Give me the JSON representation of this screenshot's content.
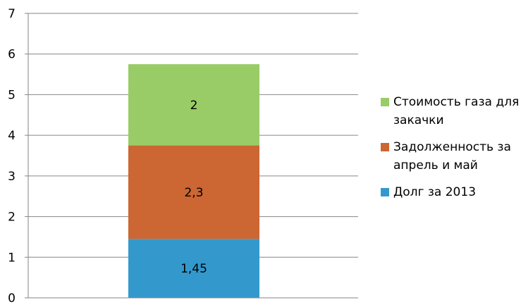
{
  "chart_data": {
    "type": "bar",
    "stacked": true,
    "categories": [
      ""
    ],
    "series": [
      {
        "name": "Долг за 2013",
        "values": [
          1.45
        ],
        "label": "1,45",
        "color": "#3399CC"
      },
      {
        "name": "Задолженность за апрель и май",
        "values": [
          2.3
        ],
        "label": "2,3",
        "color": "#CC6633"
      },
      {
        "name": "Стоимость газа для закачки",
        "values": [
          2
        ],
        "label": "2",
        "color": "#99CC66"
      }
    ],
    "ylim": [
      0,
      7
    ],
    "yticks": [
      "0",
      "1",
      "2",
      "3",
      "4",
      "5",
      "6",
      "7"
    ],
    "grid": true,
    "legend_position": "right",
    "title": "",
    "xlabel": "",
    "ylabel": ""
  }
}
